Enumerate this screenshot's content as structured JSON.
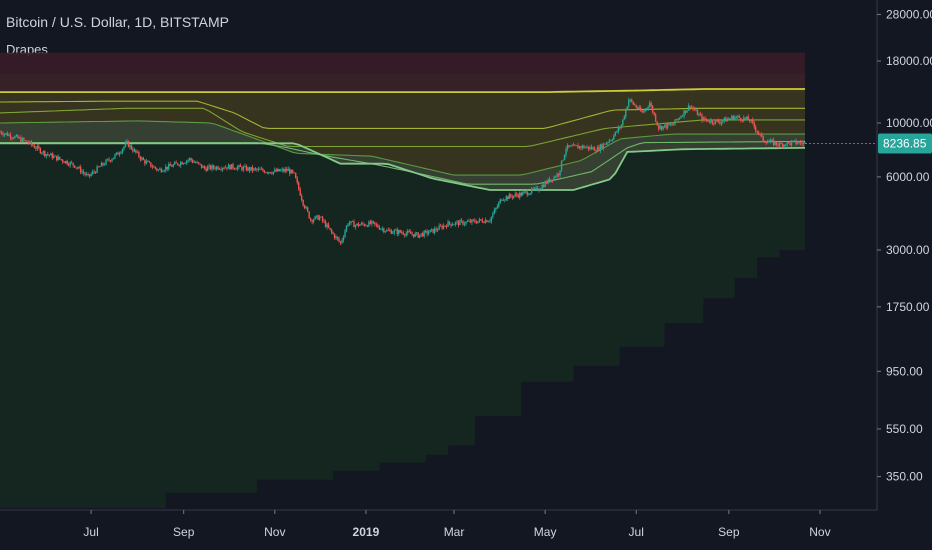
{
  "header": {
    "symbol_title": "Bitcoin / U.S. Dollar, 1D, BITSTAMP",
    "indicator_name": "Drapes"
  },
  "colors": {
    "background": "#131722",
    "up_candle": "#26a69a",
    "down_candle": "#ef5350",
    "price_tag": "#26a69a",
    "axis_line": "#363a45"
  },
  "chart_data": {
    "type": "line",
    "title": "Bitcoin / U.S. Dollar, 1D, BITSTAMP",
    "y_scale": "log",
    "ylim": [
      250,
      30000
    ],
    "y_ticks": [
      "28000.00",
      "18000.00",
      "10000.00",
      "6000.00",
      "3000.00",
      "1750.00",
      "950.00",
      "550.00",
      "350.00"
    ],
    "x_ticks": [
      "Jul",
      "Sep",
      "Nov",
      "2019",
      "Mar",
      "May",
      "Jul",
      "Sep",
      "Nov"
    ],
    "x_ticks_bold": [
      false,
      false,
      false,
      true,
      false,
      false,
      false,
      false,
      false
    ],
    "last_price": "8236.85",
    "grid": false,
    "series": [
      {
        "kind": "price",
        "points": [
          [
            "2018-05-01",
            9200
          ],
          [
            "2018-05-10",
            8800
          ],
          [
            "2018-05-20",
            8300
          ],
          [
            "2018-05-31",
            7500
          ],
          [
            "2018-06-10",
            7100
          ],
          [
            "2018-06-20",
            6700
          ],
          [
            "2018-06-29",
            6000
          ],
          [
            "2018-07-08",
            6700
          ],
          [
            "2018-07-18",
            7400
          ],
          [
            "2018-07-25",
            8250
          ],
          [
            "2018-08-05",
            7000
          ],
          [
            "2018-08-15",
            6400
          ],
          [
            "2018-08-25",
            6700
          ],
          [
            "2018-09-05",
            7100
          ],
          [
            "2018-09-15",
            6500
          ],
          [
            "2018-09-25",
            6600
          ],
          [
            "2018-10-05",
            6600
          ],
          [
            "2018-10-15",
            6450
          ],
          [
            "2018-10-31",
            6300
          ],
          [
            "2018-11-10",
            6400
          ],
          [
            "2018-11-14",
            6100
          ],
          [
            "2018-11-20",
            4700
          ],
          [
            "2018-11-25",
            4000
          ],
          [
            "2018-12-01",
            4100
          ],
          [
            "2018-12-08",
            3600
          ],
          [
            "2018-12-15",
            3200
          ],
          [
            "2018-12-20",
            3900
          ],
          [
            "2018-12-25",
            3800
          ],
          [
            "2019-01-05",
            3850
          ],
          [
            "2019-01-15",
            3600
          ],
          [
            "2019-01-25",
            3550
          ],
          [
            "2019-02-05",
            3450
          ],
          [
            "2019-02-15",
            3600
          ],
          [
            "2019-02-25",
            3850
          ],
          [
            "2019-03-10",
            3900
          ],
          [
            "2019-03-25",
            4000
          ],
          [
            "2019-04-02",
            4900
          ],
          [
            "2019-04-15",
            5100
          ],
          [
            "2019-04-25",
            5300
          ],
          [
            "2019-05-10",
            6200
          ],
          [
            "2019-05-15",
            7900
          ],
          [
            "2019-05-25",
            8000
          ],
          [
            "2019-06-05",
            7800
          ],
          [
            "2019-06-15",
            8700
          ],
          [
            "2019-06-21",
            9800
          ],
          [
            "2019-06-26",
            12500
          ],
          [
            "2019-07-05",
            11000
          ],
          [
            "2019-07-10",
            12100
          ],
          [
            "2019-07-16",
            9600
          ],
          [
            "2019-07-25",
            9800
          ],
          [
            "2019-08-06",
            11800
          ],
          [
            "2019-08-15",
            10300
          ],
          [
            "2019-08-25",
            10100
          ],
          [
            "2019-09-05",
            10600
          ],
          [
            "2019-09-15",
            10300
          ],
          [
            "2019-09-24",
            8500
          ],
          [
            "2019-10-05",
            8150
          ],
          [
            "2019-10-15",
            8300
          ],
          [
            "2019-10-22",
            8237
          ]
        ]
      },
      {
        "kind": "band_line",
        "color": "#c9cf3a",
        "points": [
          [
            "2018-05-01",
            13400
          ],
          [
            "2018-07-01",
            13400
          ],
          [
            "2018-09-01",
            13400
          ],
          [
            "2018-11-01",
            13400
          ],
          [
            "2019-02-01",
            13400
          ],
          [
            "2019-05-01",
            13400
          ],
          [
            "2019-07-01",
            13600
          ],
          [
            "2019-08-15",
            13800
          ],
          [
            "2019-10-22",
            13800
          ]
        ]
      },
      {
        "kind": "band_line",
        "color": "#a3b332",
        "points": [
          [
            "2018-05-01",
            12200
          ],
          [
            "2018-07-15",
            12300
          ],
          [
            "2018-09-10",
            12300
          ],
          [
            "2018-10-05",
            11000
          ],
          [
            "2018-10-25",
            9500
          ],
          [
            "2019-02-01",
            9500
          ],
          [
            "2019-05-01",
            9500
          ],
          [
            "2019-06-15",
            11300
          ],
          [
            "2019-08-15",
            11500
          ],
          [
            "2019-10-22",
            11500
          ]
        ]
      },
      {
        "kind": "band_line",
        "color": "#7fa436",
        "points": [
          [
            "2018-05-01",
            11000
          ],
          [
            "2018-07-25",
            11500
          ],
          [
            "2018-09-15",
            11500
          ],
          [
            "2018-10-10",
            9200
          ],
          [
            "2018-11-10",
            8000
          ],
          [
            "2019-02-01",
            8000
          ],
          [
            "2019-04-20",
            8000
          ],
          [
            "2019-06-10",
            9500
          ],
          [
            "2019-08-15",
            10300
          ],
          [
            "2019-10-22",
            10300
          ]
        ]
      },
      {
        "kind": "band_line",
        "color": "#5c9a44",
        "points": [
          [
            "2018-05-01",
            10000
          ],
          [
            "2018-08-01",
            10200
          ],
          [
            "2018-09-20",
            10000
          ],
          [
            "2018-10-15",
            8800
          ],
          [
            "2018-11-15",
            7500
          ],
          [
            "2019-01-05",
            7300
          ],
          [
            "2019-03-01",
            6100
          ],
          [
            "2019-04-15",
            6100
          ],
          [
            "2019-05-25",
            7000
          ],
          [
            "2019-06-20",
            8600
          ],
          [
            "2019-07-25",
            9000
          ],
          [
            "2019-10-22",
            9000
          ]
        ]
      },
      {
        "kind": "band_line",
        "color": "#6fb86a",
        "points": [
          [
            "2018-05-01",
            8300
          ],
          [
            "2018-10-20",
            8300
          ],
          [
            "2018-11-10",
            7900
          ],
          [
            "2018-12-01",
            7400
          ],
          [
            "2019-01-10",
            6700
          ],
          [
            "2019-02-05",
            6200
          ],
          [
            "2019-03-10",
            5600
          ],
          [
            "2019-04-25",
            5600
          ],
          [
            "2019-06-01",
            6300
          ],
          [
            "2019-06-25",
            7900
          ],
          [
            "2019-07-05",
            8300
          ],
          [
            "2019-10-22",
            8400
          ]
        ]
      },
      {
        "kind": "band_line",
        "color": "#84c98a",
        "points": [
          [
            "2018-05-01",
            8250
          ],
          [
            "2018-11-15",
            8250
          ],
          [
            "2018-12-15",
            6800
          ],
          [
            "2019-01-15",
            6800
          ],
          [
            "2019-02-15",
            5900
          ],
          [
            "2019-03-25",
            5300
          ],
          [
            "2019-05-20",
            5300
          ],
          [
            "2019-06-15",
            5900
          ],
          [
            "2019-06-25",
            7600
          ],
          [
            "2019-08-01",
            7800
          ],
          [
            "2019-10-22",
            7900
          ]
        ]
      }
    ]
  }
}
